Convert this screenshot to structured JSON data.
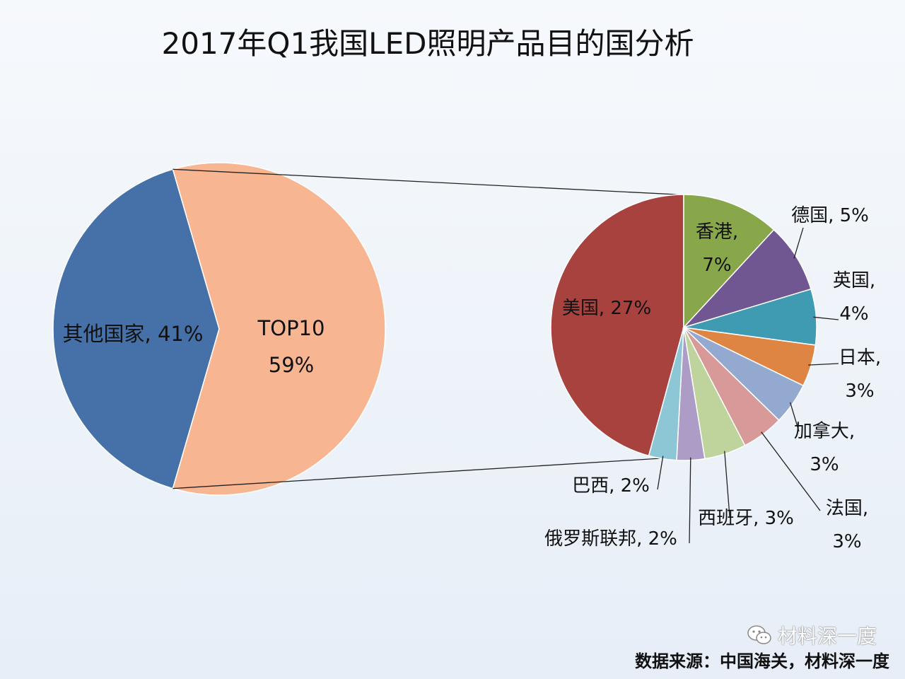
{
  "chart_data": {
    "type": "pie",
    "title": "2017年Q1我国LED照明产品目的国分析",
    "main_pie": [
      {
        "label": "其他国家, 41%",
        "value": 41,
        "color": "#4571a8"
      },
      {
        "label": "TOP10\n59%",
        "value": 59,
        "color": "#f8b591"
      }
    ],
    "detail_pie": [
      {
        "label": "美国, 27%",
        "value": 27,
        "color": "#a8423e"
      },
      {
        "label": "香港,\n7%",
        "value": 7,
        "color": "#88a64a"
      },
      {
        "label": "德国, 5%",
        "value": 5,
        "color": "#705791"
      },
      {
        "label": "英国,\n4%",
        "value": 4,
        "color": "#3e9bb2"
      },
      {
        "label": "日本,\n3%",
        "value": 3,
        "color": "#df8543"
      },
      {
        "label": "加拿大,\n3%",
        "value": 3,
        "color": "#93a9d0"
      },
      {
        "label": "法国,\n3%",
        "value": 3,
        "color": "#d79a99"
      },
      {
        "label": "西班牙, 3%",
        "value": 3,
        "color": "#bfd49c"
      },
      {
        "label": "俄罗斯联邦, 2%",
        "value": 2,
        "color": "#ad9dc6"
      },
      {
        "label": "巴西, 2%",
        "value": 2,
        "color": "#8dc7d6"
      }
    ]
  },
  "source": "数据来源：中国海关，材料深一度",
  "watermark": {
    "text": "材料深一度",
    "icon": "wechat-icon"
  }
}
